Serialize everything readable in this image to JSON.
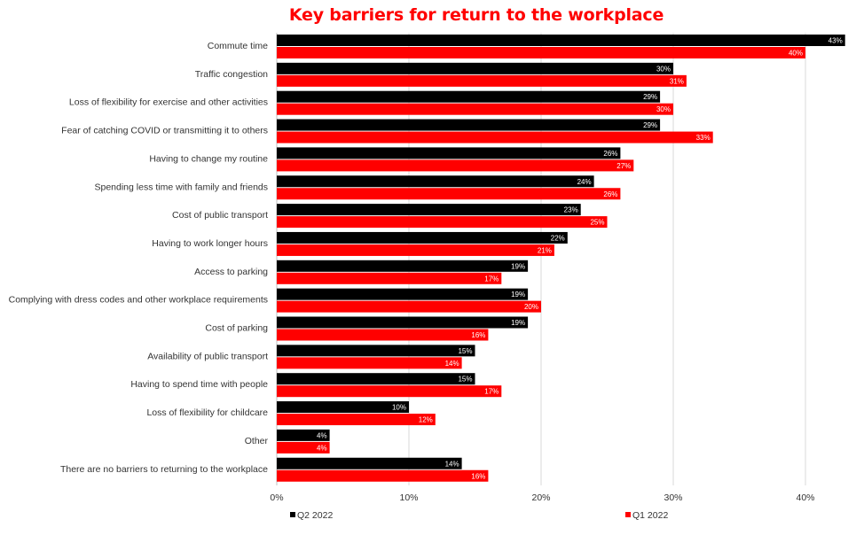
{
  "chart_data": {
    "type": "bar",
    "orientation": "horizontal",
    "title": "Key barriers for return to the workplace",
    "categories": [
      "Commute time",
      "Traffic congestion",
      "Loss of flexibility for exercise and other activities",
      "Fear of catching COVID or transmitting it to others",
      "Having to change my routine",
      "Spending less time with family and friends",
      "Cost of public transport",
      "Having to work longer hours",
      "Access to parking",
      "Complying with dress codes and other workplace requirements",
      "Cost of parking",
      "Availability of public transport",
      "Having to spend time with people",
      "Loss of flexibility for childcare",
      "Other",
      "There are no barriers to returning to the workplace"
    ],
    "series": [
      {
        "name": "Q2 2022",
        "color": "#000000",
        "values": [
          43,
          30,
          29,
          29,
          26,
          24,
          23,
          22,
          19,
          19,
          19,
          15,
          15,
          10,
          4,
          14
        ],
        "labels": [
          "43%",
          "30%",
          "29%",
          "29%",
          "26%",
          "24%",
          "23%",
          "22%",
          "19%",
          "19%",
          "19%",
          "15%",
          "15%",
          "10%",
          "4%",
          "14%"
        ]
      },
      {
        "name": "Q1 2022",
        "color": "#ff0000",
        "values": [
          40,
          31,
          30,
          33,
          27,
          26,
          25,
          21,
          17,
          20,
          16,
          14,
          17,
          12,
          4,
          16
        ],
        "labels": [
          "40%",
          "31%",
          "30%",
          "33%",
          "27%",
          "26%",
          "25%",
          "21%",
          "17%",
          "20%",
          "16%",
          "14%",
          "17%",
          "12%",
          "4%",
          "16%"
        ]
      }
    ],
    "xlim": [
      0,
      43
    ],
    "xticks": [
      0,
      10,
      20,
      30,
      40
    ],
    "xtick_labels": [
      "0%",
      "10%",
      "20%",
      "30%",
      "40%"
    ],
    "grid": "vertical",
    "legend": "bottom",
    "title_color": "#ff0000"
  }
}
